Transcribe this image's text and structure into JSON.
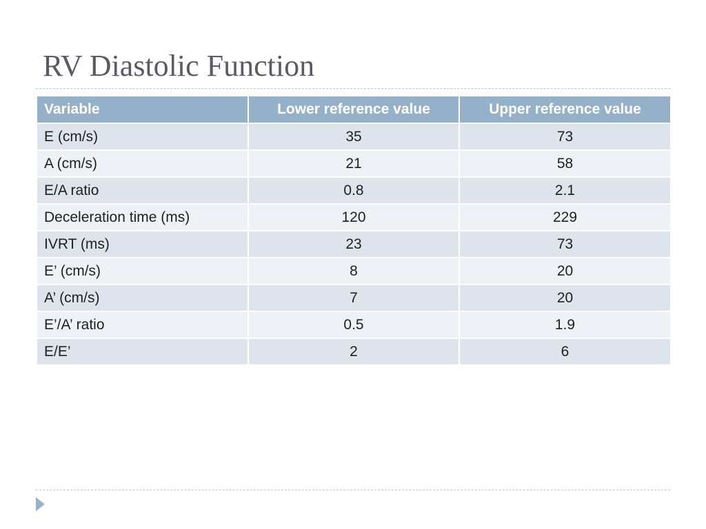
{
  "slide": {
    "title": "RV Diastolic Function"
  },
  "table": {
    "headers": [
      "Variable",
      "Lower reference value",
      "Upper reference value"
    ],
    "rows": [
      [
        "E (cm/s)",
        "35",
        "73"
      ],
      [
        "A (cm/s)",
        "21",
        "58"
      ],
      [
        "E/A ratio",
        "0.8",
        "2.1"
      ],
      [
        "Deceleration time (ms)",
        "120",
        "229"
      ],
      [
        "IVRT (ms)",
        "23",
        "73"
      ],
      [
        "E’ (cm/s)",
        "8",
        "20"
      ],
      [
        "A’ (cm/s)",
        "7",
        "20"
      ],
      [
        "E’/A’ ratio",
        "0.5",
        "1.9"
      ],
      [
        "E/E’",
        "2",
        "6"
      ]
    ]
  },
  "colors": {
    "title": "#5a5a64",
    "header_bg": "#95b0c9",
    "row_dark": "#dde4ec",
    "row_light": "#eef2f6",
    "nav_arrow": "#9ab0c8"
  },
  "icons": {
    "nav": "triangle-right-icon"
  }
}
